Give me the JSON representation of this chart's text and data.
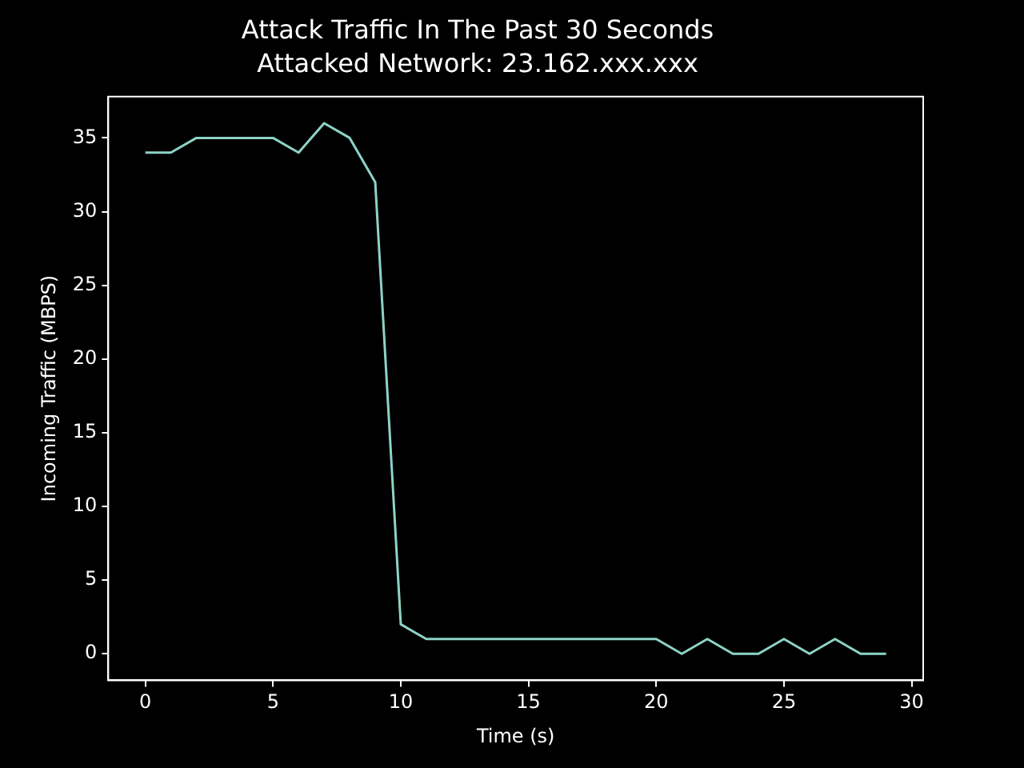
{
  "chart_data": {
    "type": "line",
    "title": "Attack Traffic In The Past 30 Seconds",
    "subtitle": "Attacked Network: 23.162.xxx.xxx",
    "xlabel": "Time (s)",
    "ylabel": "Incoming Traffic (MBPS)",
    "x": [
      0,
      1,
      2,
      3,
      4,
      5,
      6,
      7,
      8,
      9,
      10,
      11,
      12,
      13,
      14,
      15,
      16,
      17,
      18,
      19,
      20,
      21,
      22,
      23,
      24,
      25,
      26,
      27,
      28,
      29
    ],
    "series": [
      {
        "color": "#8dd3c7",
        "values": [
          34,
          34,
          35,
          35,
          35,
          35,
          34,
          36,
          35,
          32,
          2,
          1,
          1,
          1,
          1,
          1,
          1,
          1,
          1,
          1,
          1,
          0,
          1,
          0,
          0,
          1,
          0,
          1,
          0,
          0
        ]
      }
    ],
    "xlim": [
      -1.45,
      30.45
    ],
    "ylim": [
      -1.8,
      37.8
    ],
    "xticks": [
      0,
      5,
      10,
      15,
      20,
      25,
      30
    ],
    "yticks": [
      0,
      5,
      10,
      15,
      20,
      25,
      30,
      35
    ],
    "grid": false,
    "legend": false,
    "marker": "none",
    "line_style": "solid"
  }
}
